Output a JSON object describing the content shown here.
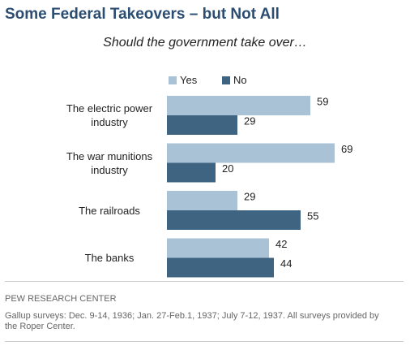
{
  "chart_data": {
    "type": "grouped-hbar",
    "title": "Some Federal Takeovers – but Not All",
    "subtitle": "Should the government take over…",
    "categories": [
      "The electric power industry",
      "The war munitions industry",
      "The railroads",
      "The banks"
    ],
    "series": [
      {
        "name": "Yes",
        "color": "#a9c2d6",
        "values": [
          59,
          69,
          29,
          42
        ]
      },
      {
        "name": "No",
        "color": "#3f6482",
        "values": [
          29,
          20,
          55,
          44
        ]
      }
    ],
    "source": "PEW RESEARCH CENTER",
    "note": "Gallup surveys: Dec. 9-14, 1936; Jan. 27-Feb.1, 1937; July 7-12, 1937.  All surveys provided by the Roper Center."
  }
}
